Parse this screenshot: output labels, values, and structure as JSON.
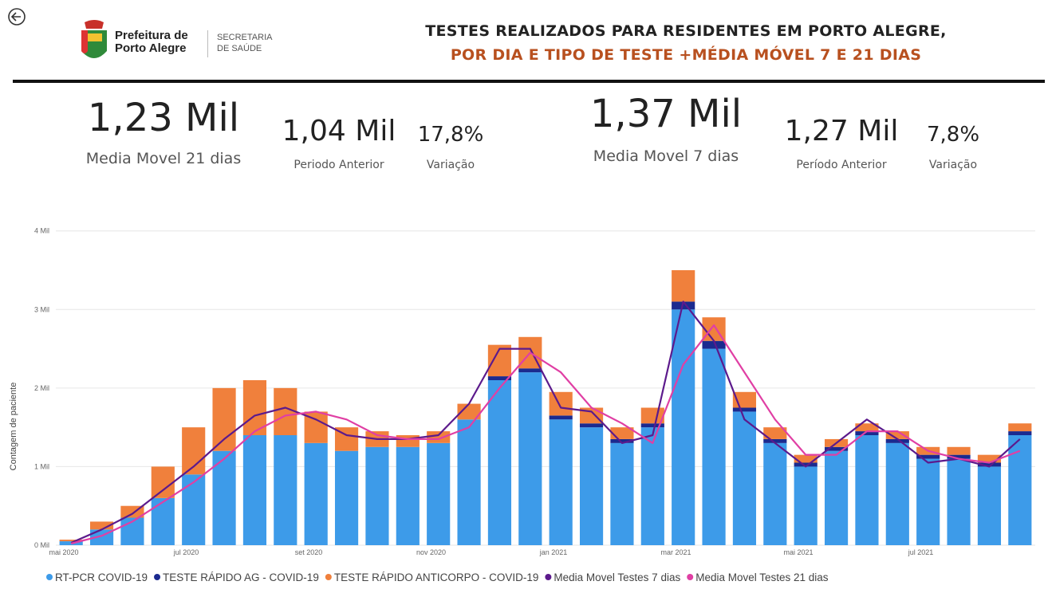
{
  "header": {
    "logo_line1": "Prefeitura de",
    "logo_line2": "Porto Alegre",
    "dept_line1": "SECRETARIA",
    "dept_line2": "DE SAÚDE",
    "title_line1": "TESTES REALIZADOS PARA RESIDENTES EM PORTO ALEGRE,",
    "title_line2": "POR DIA E TIPO DE TESTE +MÉDIA MÓVEL 7 E 21 DIAS"
  },
  "kpis": [
    {
      "value": "1,23 Mil",
      "label": "Media Movel 21 dias"
    },
    {
      "value": "1,04 Mil",
      "label": "Periodo Anterior"
    },
    {
      "value": "17,8%",
      "label": "Variação"
    },
    {
      "value": "1,37 Mil",
      "label": "Media Movel 7 dias"
    },
    {
      "value": "1,27 Mil",
      "label": "Período Anterior"
    },
    {
      "value": "7,8%",
      "label": "Variação"
    }
  ],
  "chart_data": {
    "type": "bar",
    "stacked": true,
    "y_label": "Contagem de paciente",
    "grid": true,
    "categories": [
      "mai 2020",
      null,
      null,
      null,
      "jul 2020",
      null,
      null,
      null,
      "set 2020",
      null,
      null,
      null,
      "nov 2020",
      null,
      null,
      null,
      "jan 2021",
      null,
      null,
      null,
      "mar 2021",
      null,
      null,
      null,
      "mai 2021",
      null,
      null,
      null,
      "jul 2021",
      null,
      null,
      null
    ],
    "ylim": [
      0,
      4.2
    ],
    "yticks": [
      {
        "value": 0,
        "label": "0 Mil"
      },
      {
        "value": 1,
        "label": "1 Mil"
      },
      {
        "value": 2,
        "label": "2 Mil"
      },
      {
        "value": 3,
        "label": "3 Mil"
      },
      {
        "value": 4,
        "label": "4 Mil"
      }
    ],
    "series": [
      {
        "name": "RT-PCR COVID-19",
        "type": "bar",
        "color": "#3d9be9",
        "values": [
          0.05,
          0.2,
          0.35,
          0.6,
          0.9,
          1.2,
          1.4,
          1.4,
          1.3,
          1.2,
          1.25,
          1.25,
          1.3,
          1.6,
          2.1,
          2.2,
          1.6,
          1.5,
          1.3,
          1.5,
          3.0,
          2.5,
          1.7,
          1.3,
          1.0,
          1.2,
          1.4,
          1.3,
          1.1,
          1.1,
          1.0,
          1.4
        ]
      },
      {
        "name": "TESTE RÁPIDO AG - COVID-19",
        "type": "bar",
        "color": "#1b2a8f",
        "values": [
          0,
          0,
          0,
          0,
          0,
          0,
          0,
          0,
          0,
          0,
          0,
          0,
          0,
          0,
          0.05,
          0.05,
          0.05,
          0.05,
          0.05,
          0.05,
          0.1,
          0.1,
          0.05,
          0.05,
          0.05,
          0.05,
          0.05,
          0.05,
          0.05,
          0.05,
          0.05,
          0.05
        ]
      },
      {
        "name": "TESTE RÁPIDO ANTICORPO - COVID-19",
        "type": "bar",
        "color": "#f0803c",
        "values": [
          0.02,
          0.1,
          0.15,
          0.4,
          0.6,
          0.8,
          0.7,
          0.6,
          0.4,
          0.3,
          0.2,
          0.15,
          0.15,
          0.2,
          0.4,
          0.4,
          0.3,
          0.2,
          0.15,
          0.2,
          0.4,
          0.3,
          0.2,
          0.15,
          0.1,
          0.1,
          0.1,
          0.1,
          0.1,
          0.1,
          0.1,
          0.1
        ]
      },
      {
        "name": "Media Movel Testes 7 dias",
        "type": "line",
        "color": "#5c1a8c",
        "values": [
          0.03,
          0.2,
          0.4,
          0.7,
          1.0,
          1.35,
          1.65,
          1.75,
          1.6,
          1.4,
          1.35,
          1.35,
          1.4,
          1.8,
          2.5,
          2.5,
          1.75,
          1.7,
          1.3,
          1.4,
          3.1,
          2.6,
          1.6,
          1.3,
          1.0,
          1.3,
          1.6,
          1.35,
          1.05,
          1.1,
          1.0,
          1.35
        ]
      },
      {
        "name": "Media Movel Testes 21 dias",
        "type": "line",
        "color": "#e03fa4",
        "values": [
          0.02,
          0.12,
          0.3,
          0.55,
          0.8,
          1.1,
          1.45,
          1.65,
          1.7,
          1.6,
          1.4,
          1.35,
          1.35,
          1.5,
          2.0,
          2.45,
          2.2,
          1.75,
          1.55,
          1.3,
          2.3,
          2.8,
          2.2,
          1.6,
          1.15,
          1.15,
          1.45,
          1.45,
          1.2,
          1.1,
          1.05,
          1.2
        ]
      }
    ]
  }
}
